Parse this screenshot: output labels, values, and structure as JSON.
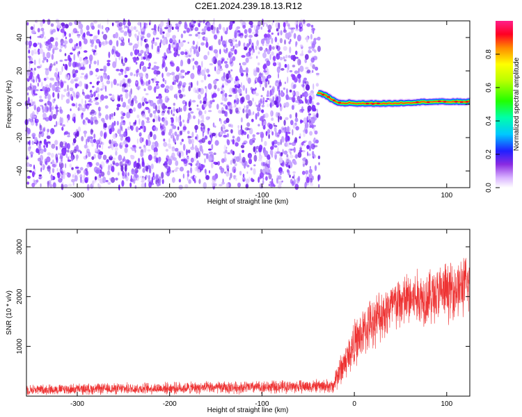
{
  "title": "C2E1.2024.239.18.13.R12",
  "colors": {
    "snr_line": "#ee3333",
    "scatter_noise": "#7b2bff",
    "axis": "#000000"
  },
  "chart_data": [
    {
      "type": "heatmap",
      "name": "spectrogram",
      "xlabel": "Height of straight line (km)",
      "ylabel": "Frequency (Hz)",
      "xlim": [
        -355,
        125
      ],
      "ylim": [
        -50,
        50
      ],
      "xticks": [
        -300,
        -200,
        -100,
        0,
        100
      ],
      "xtick_labels": [
        "-300",
        "-200",
        "-100",
        "0",
        "100"
      ],
      "yticks": [
        40,
        20,
        0,
        -20,
        -40
      ],
      "ytick_labels": [
        "40",
        "20",
        "0",
        "-20",
        "-40"
      ],
      "noise_region_x": [
        -355,
        -38
      ],
      "signal_start_x": -40,
      "signal_freq_trace": {
        "x": [
          -40,
          -30,
          -25,
          -20,
          -15,
          -10,
          -5,
          0,
          20,
          40,
          60,
          80,
          100,
          125
        ],
        "y": [
          7,
          5,
          3,
          1.5,
          0.5,
          0.5,
          1,
          0.5,
          0.5,
          0.5,
          1,
          1.5,
          1.5,
          1.5
        ]
      },
      "colorbar": {
        "label": "Normalized spectral amplitude",
        "range": [
          0,
          1
        ],
        "ticks": [
          0.0,
          0.2,
          0.4,
          0.6,
          0.8
        ],
        "tick_labels": [
          "0.0",
          "0.2",
          "0.4",
          "0.6",
          "0.8"
        ]
      }
    },
    {
      "type": "line",
      "name": "snr",
      "xlabel": "Height of straight line (km)",
      "ylabel": "SNR (10 * v/v)",
      "xlim": [
        -355,
        125
      ],
      "ylim": [
        0,
        3350
      ],
      "xticks": [
        -300,
        -200,
        -100,
        0,
        100
      ],
      "xtick_labels": [
        "-300",
        "-200",
        "-100",
        "0",
        "100"
      ],
      "yticks": [
        1000,
        2000,
        3000
      ],
      "ytick_labels": [
        "1000",
        "2000",
        "3000"
      ],
      "trend_x": [
        -355,
        -300,
        -200,
        -100,
        -40,
        -22,
        -20,
        -10,
        0,
        20,
        40,
        60,
        80,
        100,
        125
      ],
      "trend_y": [
        130,
        140,
        160,
        180,
        200,
        200,
        380,
        680,
        1050,
        1500,
        1800,
        1950,
        2000,
        2100,
        2250
      ],
      "noise_amplitude_x": [
        -355,
        -22,
        -20,
        0,
        40,
        125
      ],
      "noise_amplitude_y": [
        120,
        160,
        320,
        550,
        650,
        700
      ]
    }
  ]
}
